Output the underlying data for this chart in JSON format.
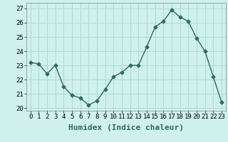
{
  "x": [
    0,
    1,
    2,
    3,
    4,
    5,
    6,
    7,
    8,
    9,
    10,
    11,
    12,
    13,
    14,
    15,
    16,
    17,
    18,
    19,
    20,
    21,
    22,
    23
  ],
  "y": [
    23.2,
    23.1,
    22.4,
    23.0,
    21.5,
    20.9,
    20.7,
    20.2,
    20.5,
    21.3,
    22.2,
    22.5,
    23.0,
    23.0,
    24.3,
    25.7,
    26.1,
    26.9,
    26.4,
    26.1,
    24.9,
    24.0,
    22.2,
    20.4
  ],
  "line_color": "#2e6b5e",
  "marker": "D",
  "marker_size": 2.5,
  "bg_color": "#cff0ec",
  "grid_color": "#aed8d4",
  "xlabel": "Humidex (Indice chaleur)",
  "ylabel_ticks": [
    20,
    21,
    22,
    23,
    24,
    25,
    26,
    27
  ],
  "xlim": [
    -0.5,
    23.5
  ],
  "ylim": [
    19.8,
    27.4
  ],
  "xticks": [
    0,
    1,
    2,
    3,
    4,
    5,
    6,
    7,
    8,
    9,
    10,
    11,
    12,
    13,
    14,
    15,
    16,
    17,
    18,
    19,
    20,
    21,
    22,
    23
  ],
  "xlabel_fontsize": 8,
  "tick_fontsize": 6.5
}
